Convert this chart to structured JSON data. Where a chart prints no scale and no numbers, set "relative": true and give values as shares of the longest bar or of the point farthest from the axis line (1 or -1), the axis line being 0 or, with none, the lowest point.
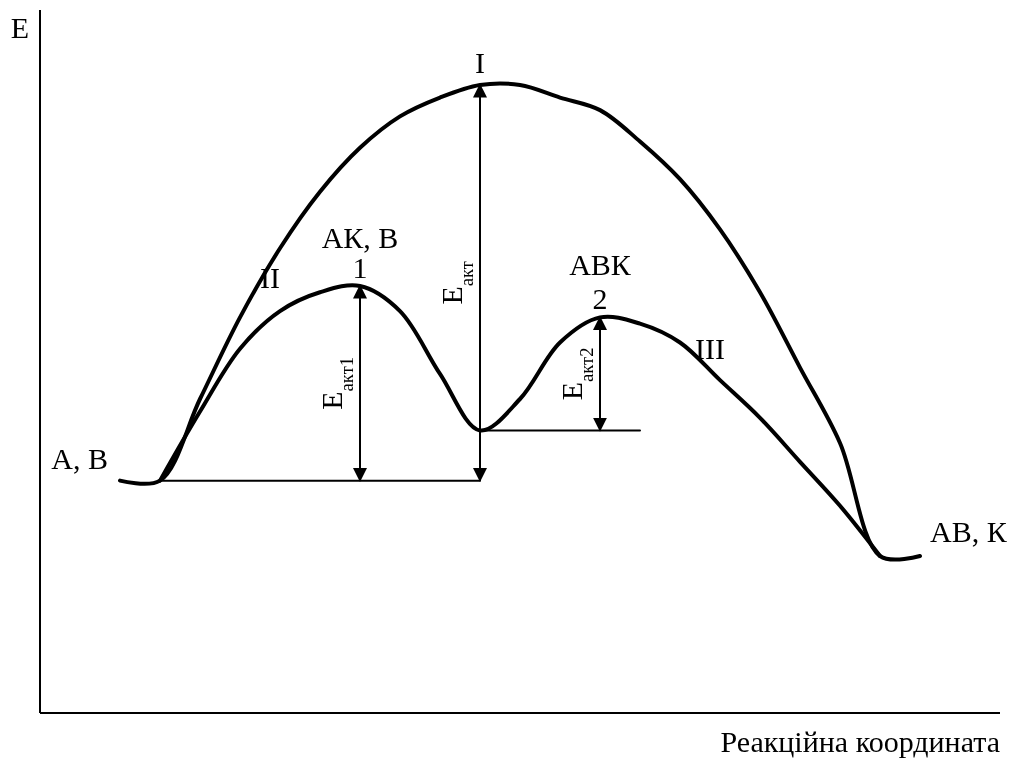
{
  "chart_data": {
    "type": "line",
    "relative": true,
    "xlabel": "Реакційна координата",
    "ylabel": "Е",
    "categories": [
      null,
      null,
      null,
      null,
      null,
      null,
      null,
      null,
      null,
      null,
      null,
      null,
      null,
      null,
      null,
      null,
      null,
      null,
      null,
      null,
      null,
      null,
      null,
      null,
      null
    ],
    "series": [
      {
        "name": "I",
        "color": "#000000",
        "values": [
          null,
          null,
          0.37,
          0.37,
          0.5,
          0.63,
          0.74,
          0.83,
          0.9,
          0.95,
          0.98,
          1,
          1,
          0.98,
          0.96,
          0.91,
          0.85,
          0.77,
          0.67,
          0.55,
          0.43,
          0.25,
          0.25,
          null,
          null
        ]
      },
      {
        "color": "#000000",
        "values": [
          null,
          null,
          null,
          0.37,
          0.48,
          0.58,
          0.64,
          0.67,
          0.68,
          0.64,
          0.54,
          0.45,
          0.5,
          0.59,
          0.63,
          0.62,
          0.59,
          0.53,
          0.47,
          0.4,
          0.33,
          0.25,
          null,
          null,
          null
        ]
      },
      {
        "color": "#000000",
        "values": [
          null,
          null,
          null,
          0.37,
          0.37,
          0.37,
          0.37,
          0.37,
          0.37,
          0.37,
          0.37,
          0.37,
          null,
          null,
          null,
          null,
          null,
          null,
          null,
          null,
          null,
          null,
          null,
          null,
          null
        ]
      },
      {
        "color": "#000000",
        "values": [
          null,
          null,
          null,
          null,
          null,
          null,
          null,
          null,
          null,
          null,
          null,
          0.45,
          0.45,
          0.45,
          0.45,
          0.45,
          null,
          null,
          null,
          null,
          null,
          null,
          null,
          null,
          null
        ]
      }
    ],
    "annotations": [
      "II",
      "III",
      "1",
      "2",
      "АК, В",
      "АВК",
      "А, В",
      "АВ, К",
      "Е$_{акт}$",
      "Е$_{акт1}$",
      "Е$_{акт2}$"
    ]
  }
}
